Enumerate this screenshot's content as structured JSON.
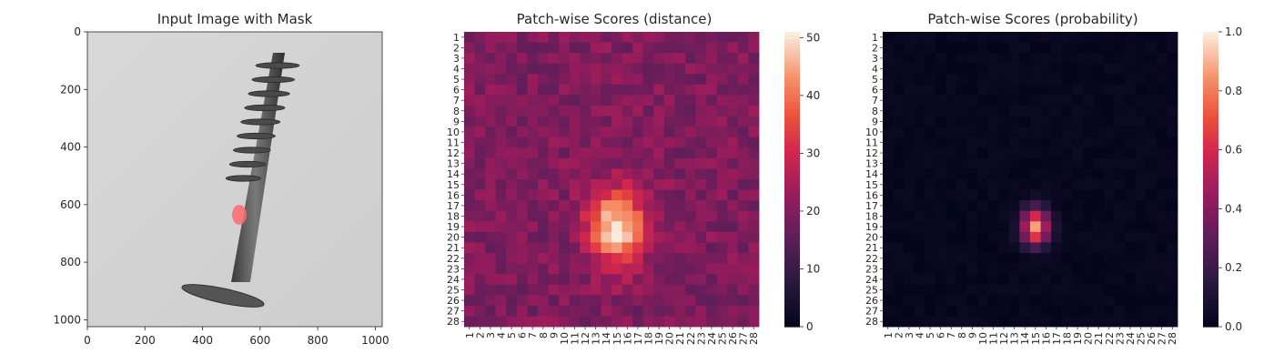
{
  "chart_data": [
    {
      "type": "image",
      "title": "Input Image with Mask",
      "x_ticks": [
        0,
        200,
        400,
        600,
        800,
        1000
      ],
      "y_ticks": [
        0,
        200,
        400,
        600,
        800,
        1000
      ],
      "xlim": [
        0,
        1024
      ],
      "ylim": [
        1024,
        0
      ],
      "mask_color": "#ff6b6b"
    },
    {
      "type": "heatmap",
      "title": "Patch-wise Scores (distance)",
      "rows": 28,
      "cols": 28,
      "row_labels": [
        "1",
        "2",
        "3",
        "4",
        "5",
        "6",
        "7",
        "8",
        "9",
        "10",
        "11",
        "12",
        "13",
        "14",
        "15",
        "16",
        "17",
        "18",
        "19",
        "20",
        "21",
        "22",
        "23",
        "24",
        "25",
        "26",
        "27",
        "28"
      ],
      "col_labels": [
        "1",
        "2",
        "3",
        "4",
        "5",
        "6",
        "7",
        "8",
        "9",
        "10",
        "11",
        "12",
        "13",
        "14",
        "15",
        "16",
        "17",
        "18",
        "19",
        "20",
        "21",
        "22",
        "23",
        "24",
        "25",
        "26",
        "27",
        "28"
      ],
      "vmin": 0,
      "vmax": 51,
      "colorbar_ticks": [
        "0",
        "10",
        "20",
        "30",
        "40",
        "50"
      ],
      "colormap": "rocket",
      "hotspot": {
        "row": 19,
        "col": 15,
        "peak": 50,
        "background": 20
      }
    },
    {
      "type": "heatmap",
      "title": "Patch-wise Scores (probability)",
      "rows": 28,
      "cols": 28,
      "row_labels": [
        "1",
        "2",
        "3",
        "4",
        "5",
        "6",
        "7",
        "8",
        "9",
        "10",
        "11",
        "12",
        "13",
        "14",
        "15",
        "16",
        "17",
        "18",
        "19",
        "20",
        "21",
        "22",
        "23",
        "24",
        "25",
        "26",
        "27",
        "28"
      ],
      "col_labels": [
        "1",
        "2",
        "3",
        "4",
        "5",
        "6",
        "7",
        "8",
        "9",
        "10",
        "11",
        "12",
        "13",
        "14",
        "15",
        "16",
        "17",
        "18",
        "19",
        "20",
        "21",
        "22",
        "23",
        "24",
        "25",
        "26",
        "27",
        "28"
      ],
      "vmin": 0.0,
      "vmax": 1.0,
      "colorbar_ticks": [
        "0.0",
        "0.2",
        "0.4",
        "0.6",
        "0.8",
        "1.0"
      ],
      "colormap": "rocket",
      "hotspot": {
        "row": 19,
        "col": 15,
        "peak": 0.85,
        "background": 0.02
      }
    }
  ]
}
